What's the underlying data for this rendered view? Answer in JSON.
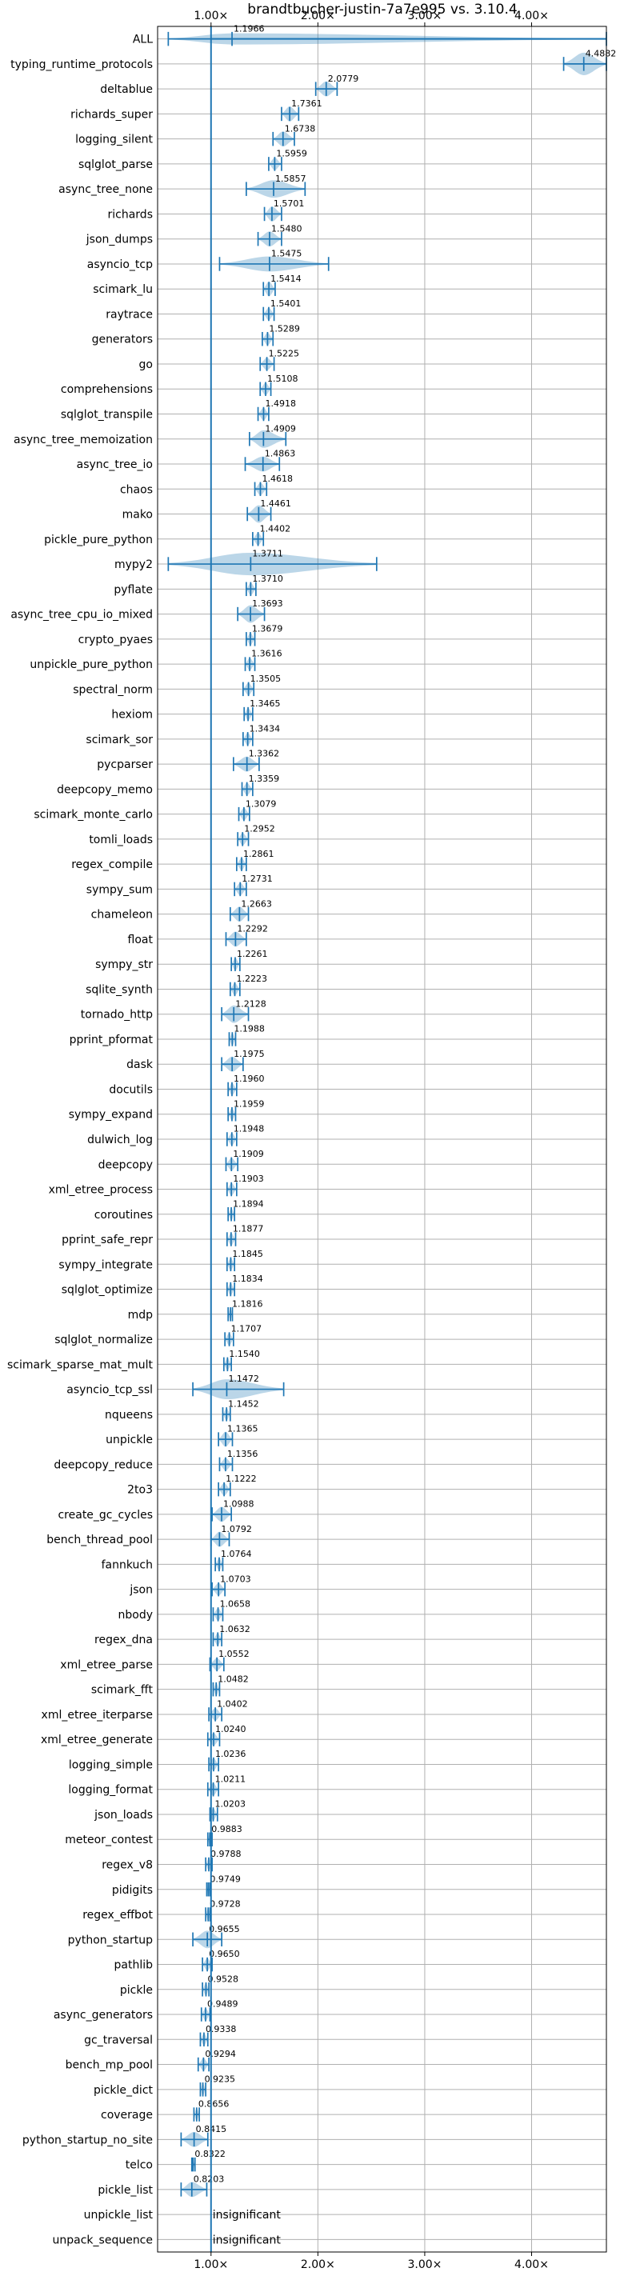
{
  "chart_data": {
    "type": "violin",
    "title": "brandtbucher-justin-7a7e995 vs. 3.10.4",
    "xlim": [
      0.5,
      4.7
    ],
    "reference_x": 1.0,
    "x_ticks": [
      {
        "value": 1.0,
        "label": "1.00×"
      },
      {
        "value": 2.0,
        "label": "2.00×"
      },
      {
        "value": 3.0,
        "label": "3.00×"
      },
      {
        "value": 4.0,
        "label": "4.00×"
      }
    ],
    "grid": true,
    "items": [
      {
        "name": "ALL",
        "median": 1.1966,
        "label": "1.1966",
        "min": 0.6,
        "max": 4.7,
        "q1": 0.84,
        "q3": 1.58,
        "max_width": 0.45
      },
      {
        "name": "typing_runtime_protocols",
        "median": 4.4882,
        "label": "4.4882",
        "min": 4.3,
        "max": 4.7,
        "q1": 4.42,
        "q3": 4.58,
        "max_width": 0.9
      },
      {
        "name": "deltablue",
        "median": 2.0779,
        "label": "2.0779",
        "min": 1.98,
        "max": 2.18,
        "q1": 2.04,
        "q3": 2.12,
        "max_width": 0.6
      },
      {
        "name": "richards_super",
        "median": 1.7361,
        "label": "1.7361",
        "min": 1.66,
        "max": 1.82,
        "q1": 1.7,
        "q3": 1.78,
        "max_width": 0.6
      },
      {
        "name": "logging_silent",
        "median": 1.6738,
        "label": "1.6738",
        "min": 1.58,
        "max": 1.78,
        "q1": 1.63,
        "q3": 1.72,
        "max_width": 0.6
      },
      {
        "name": "sqlglot_parse",
        "median": 1.5959,
        "label": "1.5959",
        "min": 1.54,
        "max": 1.66,
        "q1": 1.57,
        "q3": 1.62,
        "max_width": 0.5
      },
      {
        "name": "async_tree_none",
        "median": 1.5857,
        "label": "1.5857",
        "min": 1.33,
        "max": 1.88,
        "q1": 1.5,
        "q3": 1.68,
        "max_width": 0.7
      },
      {
        "name": "richards",
        "median": 1.5701,
        "label": "1.5701",
        "min": 1.5,
        "max": 1.66,
        "q1": 1.54,
        "q3": 1.61,
        "max_width": 0.6
      },
      {
        "name": "json_dumps",
        "median": 1.548,
        "label": "1.5480",
        "min": 1.44,
        "max": 1.66,
        "q1": 1.5,
        "q3": 1.6,
        "max_width": 0.6
      },
      {
        "name": "asyncio_tcp",
        "median": 1.5475,
        "label": "1.5475",
        "min": 1.08,
        "max": 2.1,
        "q1": 1.3,
        "q3": 1.8,
        "max_width": 0.6
      },
      {
        "name": "scimark_lu",
        "median": 1.5414,
        "label": "1.5414",
        "min": 1.49,
        "max": 1.6,
        "q1": 1.52,
        "q3": 1.57,
        "max_width": 0.6
      },
      {
        "name": "raytrace",
        "median": 1.5401,
        "label": "1.5401",
        "min": 1.49,
        "max": 1.59,
        "q1": 1.52,
        "q3": 1.56,
        "max_width": 0.5
      },
      {
        "name": "generators",
        "median": 1.5289,
        "label": "1.5289",
        "min": 1.48,
        "max": 1.58,
        "q1": 1.51,
        "q3": 1.55,
        "max_width": 0.5
      },
      {
        "name": "go",
        "median": 1.5225,
        "label": "1.5225",
        "min": 1.46,
        "max": 1.59,
        "q1": 1.5,
        "q3": 1.55,
        "max_width": 0.5
      },
      {
        "name": "comprehensions",
        "median": 1.5108,
        "label": "1.5108",
        "min": 1.46,
        "max": 1.56,
        "q1": 1.49,
        "q3": 1.53,
        "max_width": 0.5
      },
      {
        "name": "sqlglot_transpile",
        "median": 1.4918,
        "label": "1.4918",
        "min": 1.44,
        "max": 1.54,
        "q1": 1.47,
        "q3": 1.51,
        "max_width": 0.5
      },
      {
        "name": "async_tree_memoization",
        "median": 1.4909,
        "label": "1.4909",
        "min": 1.36,
        "max": 1.7,
        "q1": 1.44,
        "q3": 1.56,
        "max_width": 0.7
      },
      {
        "name": "async_tree_io",
        "median": 1.4863,
        "label": "1.4863",
        "min": 1.32,
        "max": 1.64,
        "q1": 1.43,
        "q3": 1.55,
        "max_width": 0.6
      },
      {
        "name": "chaos",
        "median": 1.4618,
        "label": "1.4618",
        "min": 1.41,
        "max": 1.52,
        "q1": 1.44,
        "q3": 1.49,
        "max_width": 0.5
      },
      {
        "name": "mako",
        "median": 1.4461,
        "label": "1.4461",
        "min": 1.34,
        "max": 1.56,
        "q1": 1.41,
        "q3": 1.49,
        "max_width": 0.7
      },
      {
        "name": "pickle_pure_python",
        "median": 1.4402,
        "label": "1.4402",
        "min": 1.39,
        "max": 1.49,
        "q1": 1.42,
        "q3": 1.46,
        "max_width": 0.5
      },
      {
        "name": "mypy2",
        "median": 1.3711,
        "label": "1.3711",
        "min": 0.6,
        "max": 2.55,
        "q1": 1.0,
        "q3": 1.9,
        "max_width": 0.9
      },
      {
        "name": "pyflate",
        "median": 1.371,
        "label": "1.3710",
        "min": 1.33,
        "max": 1.42,
        "q1": 1.35,
        "q3": 1.39,
        "max_width": 0.5
      },
      {
        "name": "async_tree_cpu_io_mixed",
        "median": 1.3693,
        "label": "1.3693",
        "min": 1.25,
        "max": 1.5,
        "q1": 1.32,
        "q3": 1.42,
        "max_width": 0.7
      },
      {
        "name": "crypto_pyaes",
        "median": 1.3679,
        "label": "1.3679",
        "min": 1.33,
        "max": 1.41,
        "q1": 1.35,
        "q3": 1.39,
        "max_width": 0.5
      },
      {
        "name": "unpickle_pure_python",
        "median": 1.3616,
        "label": "1.3616",
        "min": 1.32,
        "max": 1.41,
        "q1": 1.34,
        "q3": 1.38,
        "max_width": 0.5
      },
      {
        "name": "spectral_norm",
        "median": 1.3505,
        "label": "1.3505",
        "min": 1.3,
        "max": 1.4,
        "q1": 1.33,
        "q3": 1.37,
        "max_width": 0.5
      },
      {
        "name": "hexiom",
        "median": 1.3465,
        "label": "1.3465",
        "min": 1.31,
        "max": 1.39,
        "q1": 1.33,
        "q3": 1.36,
        "max_width": 0.5
      },
      {
        "name": "scimark_sor",
        "median": 1.3434,
        "label": "1.3434",
        "min": 1.3,
        "max": 1.39,
        "q1": 1.32,
        "q3": 1.36,
        "max_width": 0.5
      },
      {
        "name": "pycparser",
        "median": 1.3362,
        "label": "1.3362",
        "min": 1.21,
        "max": 1.45,
        "q1": 1.3,
        "q3": 1.38,
        "max_width": 0.6
      },
      {
        "name": "deepcopy_memo",
        "median": 1.3359,
        "label": "1.3359",
        "min": 1.29,
        "max": 1.39,
        "q1": 1.31,
        "q3": 1.36,
        "max_width": 0.5
      },
      {
        "name": "scimark_monte_carlo",
        "median": 1.3079,
        "label": "1.3079",
        "min": 1.26,
        "max": 1.36,
        "q1": 1.29,
        "q3": 1.33,
        "max_width": 0.5
      },
      {
        "name": "tomli_loads",
        "median": 1.2952,
        "label": "1.2952",
        "min": 1.25,
        "max": 1.35,
        "q1": 1.27,
        "q3": 1.32,
        "max_width": 0.5
      },
      {
        "name": "regex_compile",
        "median": 1.2861,
        "label": "1.2861",
        "min": 1.24,
        "max": 1.33,
        "q1": 1.27,
        "q3": 1.31,
        "max_width": 0.5
      },
      {
        "name": "sympy_sum",
        "median": 1.2731,
        "label": "1.2731",
        "min": 1.22,
        "max": 1.33,
        "q1": 1.25,
        "q3": 1.3,
        "max_width": 0.5
      },
      {
        "name": "chameleon",
        "median": 1.2663,
        "label": "1.2663",
        "min": 1.18,
        "max": 1.35,
        "q1": 1.23,
        "q3": 1.3,
        "max_width": 0.6
      },
      {
        "name": "float",
        "median": 1.2292,
        "label": "1.2292",
        "min": 1.14,
        "max": 1.33,
        "q1": 1.19,
        "q3": 1.27,
        "max_width": 0.6
      },
      {
        "name": "sympy_str",
        "median": 1.2261,
        "label": "1.2261",
        "min": 1.19,
        "max": 1.27,
        "q1": 1.21,
        "q3": 1.25,
        "max_width": 0.5
      },
      {
        "name": "sqlite_synth",
        "median": 1.2223,
        "label": "1.2223",
        "min": 1.18,
        "max": 1.27,
        "q1": 1.2,
        "q3": 1.24,
        "max_width": 0.5
      },
      {
        "name": "tornado_http",
        "median": 1.2128,
        "label": "1.2128",
        "min": 1.1,
        "max": 1.35,
        "q1": 1.16,
        "q3": 1.27,
        "max_width": 0.7
      },
      {
        "name": "pprint_pformat",
        "median": 1.1988,
        "label": "1.1988",
        "min": 1.17,
        "max": 1.23,
        "q1": 1.19,
        "q3": 1.21,
        "max_width": 0.5
      },
      {
        "name": "dask",
        "median": 1.1975,
        "label": "1.1975",
        "min": 1.1,
        "max": 1.3,
        "q1": 1.15,
        "q3": 1.24,
        "max_width": 0.6
      },
      {
        "name": "docutils",
        "median": 1.196,
        "label": "1.1960",
        "min": 1.16,
        "max": 1.24,
        "q1": 1.18,
        "q3": 1.22,
        "max_width": 0.5
      },
      {
        "name": "sympy_expand",
        "median": 1.1959,
        "label": "1.1959",
        "min": 1.16,
        "max": 1.23,
        "q1": 1.18,
        "q3": 1.21,
        "max_width": 0.5
      },
      {
        "name": "dulwich_log",
        "median": 1.1948,
        "label": "1.1948",
        "min": 1.15,
        "max": 1.24,
        "q1": 1.17,
        "q3": 1.22,
        "max_width": 0.5
      },
      {
        "name": "deepcopy",
        "median": 1.1909,
        "label": "1.1909",
        "min": 1.14,
        "max": 1.25,
        "q1": 1.17,
        "q3": 1.22,
        "max_width": 0.5
      },
      {
        "name": "xml_etree_process",
        "median": 1.1903,
        "label": "1.1903",
        "min": 1.15,
        "max": 1.24,
        "q1": 1.17,
        "q3": 1.21,
        "max_width": 0.5
      },
      {
        "name": "coroutines",
        "median": 1.1894,
        "label": "1.1894",
        "min": 1.16,
        "max": 1.22,
        "q1": 1.18,
        "q3": 1.2,
        "max_width": 0.5
      },
      {
        "name": "pprint_safe_repr",
        "median": 1.1877,
        "label": "1.1877",
        "min": 1.15,
        "max": 1.23,
        "q1": 1.17,
        "q3": 1.21,
        "max_width": 0.5
      },
      {
        "name": "sympy_integrate",
        "median": 1.1845,
        "label": "1.1845",
        "min": 1.15,
        "max": 1.22,
        "q1": 1.17,
        "q3": 1.2,
        "max_width": 0.5
      },
      {
        "name": "sqlglot_optimize",
        "median": 1.1834,
        "label": "1.1834",
        "min": 1.15,
        "max": 1.22,
        "q1": 1.17,
        "q3": 1.2,
        "max_width": 0.5
      },
      {
        "name": "mdp",
        "median": 1.1816,
        "label": "1.1816",
        "min": 1.16,
        "max": 1.2,
        "q1": 1.17,
        "q3": 1.19,
        "max_width": 0.5
      },
      {
        "name": "sqlglot_normalize",
        "median": 1.1707,
        "label": "1.1707",
        "min": 1.13,
        "max": 1.21,
        "q1": 1.15,
        "q3": 1.19,
        "max_width": 0.5
      },
      {
        "name": "scimark_sparse_mat_mult",
        "median": 1.154,
        "label": "1.1540",
        "min": 1.12,
        "max": 1.19,
        "q1": 1.14,
        "q3": 1.17,
        "max_width": 0.5
      },
      {
        "name": "asyncio_tcp_ssl",
        "median": 1.1472,
        "label": "1.1472",
        "min": 0.83,
        "max": 1.68,
        "q1": 1.0,
        "q3": 1.35,
        "max_width": 0.8
      },
      {
        "name": "nqueens",
        "median": 1.1452,
        "label": "1.1452",
        "min": 1.11,
        "max": 1.18,
        "q1": 1.13,
        "q3": 1.16,
        "max_width": 0.5
      },
      {
        "name": "unpickle",
        "median": 1.1365,
        "label": "1.1365",
        "min": 1.07,
        "max": 1.2,
        "q1": 1.11,
        "q3": 1.17,
        "max_width": 0.6
      },
      {
        "name": "deepcopy_reduce",
        "median": 1.1356,
        "label": "1.1356",
        "min": 1.08,
        "max": 1.2,
        "q1": 1.11,
        "q3": 1.17,
        "max_width": 0.5
      },
      {
        "name": "2to3",
        "median": 1.1222,
        "label": "1.1222",
        "min": 1.07,
        "max": 1.18,
        "q1": 1.1,
        "q3": 1.15,
        "max_width": 0.5
      },
      {
        "name": "create_gc_cycles",
        "median": 1.0988,
        "label": "1.0988",
        "min": 1.01,
        "max": 1.19,
        "q1": 1.06,
        "q3": 1.14,
        "max_width": 0.6
      },
      {
        "name": "bench_thread_pool",
        "median": 1.0792,
        "label": "1.0792",
        "min": 1.0,
        "max": 1.17,
        "q1": 1.04,
        "q3": 1.12,
        "max_width": 0.6
      },
      {
        "name": "fannkuch",
        "median": 1.0764,
        "label": "1.0764",
        "min": 1.04,
        "max": 1.11,
        "q1": 1.06,
        "q3": 1.09,
        "max_width": 0.5
      },
      {
        "name": "json",
        "median": 1.0703,
        "label": "1.0703",
        "min": 1.01,
        "max": 1.13,
        "q1": 1.05,
        "q3": 1.1,
        "max_width": 0.5
      },
      {
        "name": "nbody",
        "median": 1.0658,
        "label": "1.0658",
        "min": 1.02,
        "max": 1.11,
        "q1": 1.05,
        "q3": 1.09,
        "max_width": 0.5
      },
      {
        "name": "regex_dna",
        "median": 1.0632,
        "label": "1.0632",
        "min": 1.02,
        "max": 1.1,
        "q1": 1.04,
        "q3": 1.08,
        "max_width": 0.5
      },
      {
        "name": "xml_etree_parse",
        "median": 1.0552,
        "label": "1.0552",
        "min": 0.99,
        "max": 1.12,
        "q1": 1.02,
        "q3": 1.09,
        "max_width": 0.5
      },
      {
        "name": "scimark_fft",
        "median": 1.0482,
        "label": "1.0482",
        "min": 1.02,
        "max": 1.08,
        "q1": 1.03,
        "q3": 1.06,
        "max_width": 0.5
      },
      {
        "name": "xml_etree_iterparse",
        "median": 1.0402,
        "label": "1.0402",
        "min": 0.98,
        "max": 1.1,
        "q1": 1.01,
        "q3": 1.07,
        "max_width": 0.5
      },
      {
        "name": "xml_etree_generate",
        "median": 1.024,
        "label": "1.0240",
        "min": 0.97,
        "max": 1.08,
        "q1": 1.0,
        "q3": 1.05,
        "max_width": 0.5
      },
      {
        "name": "logging_simple",
        "median": 1.0236,
        "label": "1.0236",
        "min": 0.98,
        "max": 1.07,
        "q1": 1.0,
        "q3": 1.05,
        "max_width": 0.5
      },
      {
        "name": "logging_format",
        "median": 1.0211,
        "label": "1.0211",
        "min": 0.97,
        "max": 1.07,
        "q1": 1.0,
        "q3": 1.04,
        "max_width": 0.5
      },
      {
        "name": "json_loads",
        "median": 1.0203,
        "label": "1.0203",
        "min": 0.99,
        "max": 1.06,
        "q1": 1.0,
        "q3": 1.04,
        "max_width": 0.5
      },
      {
        "name": "meteor_contest",
        "median": 0.9883,
        "label": "0.9883",
        "min": 0.97,
        "max": 1.01,
        "q1": 0.98,
        "q3": 1.0,
        "max_width": 0.5
      },
      {
        "name": "regex_v8",
        "median": 0.9788,
        "label": "0.9788",
        "min": 0.95,
        "max": 1.01,
        "q1": 0.97,
        "q3": 0.99,
        "max_width": 0.5
      },
      {
        "name": "pidigits",
        "median": 0.9749,
        "label": "0.9749",
        "min": 0.96,
        "max": 0.99,
        "q1": 0.97,
        "q3": 0.98,
        "max_width": 0.5
      },
      {
        "name": "regex_effbot",
        "median": 0.9728,
        "label": "0.9728",
        "min": 0.95,
        "max": 0.99,
        "q1": 0.96,
        "q3": 0.98,
        "max_width": 0.5
      },
      {
        "name": "python_startup",
        "median": 0.9655,
        "label": "0.9655",
        "min": 0.83,
        "max": 1.1,
        "q1": 0.91,
        "q3": 1.02,
        "max_width": 0.7
      },
      {
        "name": "pathlib",
        "median": 0.965,
        "label": "0.9650",
        "min": 0.92,
        "max": 1.01,
        "q1": 0.95,
        "q3": 0.98,
        "max_width": 0.5
      },
      {
        "name": "pickle",
        "median": 0.9528,
        "label": "0.9528",
        "min": 0.92,
        "max": 0.98,
        "q1": 0.94,
        "q3": 0.97,
        "max_width": 0.5
      },
      {
        "name": "async_generators",
        "median": 0.9489,
        "label": "0.9489",
        "min": 0.91,
        "max": 0.99,
        "q1": 0.93,
        "q3": 0.97,
        "max_width": 0.5
      },
      {
        "name": "gc_traversal",
        "median": 0.9338,
        "label": "0.9338",
        "min": 0.9,
        "max": 0.97,
        "q1": 0.92,
        "q3": 0.95,
        "max_width": 0.5
      },
      {
        "name": "bench_mp_pool",
        "median": 0.9294,
        "label": "0.9294",
        "min": 0.88,
        "max": 0.98,
        "q1": 0.91,
        "q3": 0.95,
        "max_width": 0.5
      },
      {
        "name": "pickle_dict",
        "median": 0.9235,
        "label": "0.9235",
        "min": 0.9,
        "max": 0.95,
        "q1": 0.91,
        "q3": 0.94,
        "max_width": 0.5
      },
      {
        "name": "coverage",
        "median": 0.8656,
        "label": "0.8656",
        "min": 0.84,
        "max": 0.89,
        "q1": 0.85,
        "q3": 0.88,
        "max_width": 0.5
      },
      {
        "name": "python_startup_no_site",
        "median": 0.8415,
        "label": "0.8415",
        "min": 0.72,
        "max": 0.97,
        "q1": 0.79,
        "q3": 0.9,
        "max_width": 0.6
      },
      {
        "name": "telco",
        "median": 0.8322,
        "label": "0.8322",
        "min": 0.82,
        "max": 0.85,
        "q1": 0.83,
        "q3": 0.84,
        "max_width": 0.4
      },
      {
        "name": "pickle_list",
        "median": 0.8203,
        "label": "0.8203",
        "min": 0.72,
        "max": 0.96,
        "q1": 0.75,
        "q3": 0.89,
        "max_width": 0.6
      },
      {
        "name": "unpickle_list",
        "median": null,
        "label": "insignificant",
        "min": null,
        "max": null,
        "q1": null,
        "q3": null,
        "max_width": 0
      },
      {
        "name": "unpack_sequence",
        "median": null,
        "label": "insignificant",
        "min": null,
        "max": null,
        "q1": null,
        "q3": null,
        "max_width": 0
      }
    ]
  }
}
